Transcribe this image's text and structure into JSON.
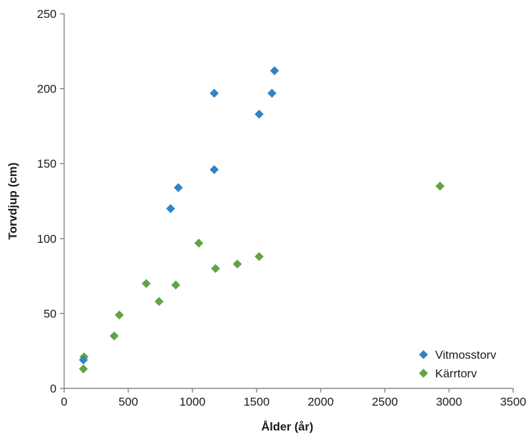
{
  "chart_data": {
    "type": "scatter",
    "title": "",
    "xlabel": "Ålder (år)",
    "ylabel": "Torvdjup (cm)",
    "xlim": [
      0,
      3500
    ],
    "ylim": [
      0,
      250
    ],
    "xticks": [
      0,
      500,
      1000,
      1500,
      2000,
      2500,
      3000,
      3500
    ],
    "yticks": [
      0,
      50,
      100,
      150,
      200,
      250
    ],
    "grid": false,
    "legend_position": "bottom-right",
    "marker": "diamond",
    "series": [
      {
        "name": "Vitmosstorv",
        "color": "#2f84c8",
        "points": [
          {
            "x": 150,
            "y": 19
          },
          {
            "x": 830,
            "y": 120
          },
          {
            "x": 890,
            "y": 134
          },
          {
            "x": 1170,
            "y": 197
          },
          {
            "x": 1170,
            "y": 146
          },
          {
            "x": 1520,
            "y": 183
          },
          {
            "x": 1620,
            "y": 197
          },
          {
            "x": 1640,
            "y": 212
          }
        ]
      },
      {
        "name": "Kärrtorv",
        "color": "#62a344",
        "points": [
          {
            "x": 150,
            "y": 13
          },
          {
            "x": 155,
            "y": 21
          },
          {
            "x": 390,
            "y": 35
          },
          {
            "x": 430,
            "y": 49
          },
          {
            "x": 640,
            "y": 70
          },
          {
            "x": 740,
            "y": 58
          },
          {
            "x": 870,
            "y": 69
          },
          {
            "x": 1050,
            "y": 97
          },
          {
            "x": 1180,
            "y": 80
          },
          {
            "x": 1350,
            "y": 83
          },
          {
            "x": 1520,
            "y": 88
          },
          {
            "x": 2930,
            "y": 135
          }
        ]
      }
    ]
  }
}
